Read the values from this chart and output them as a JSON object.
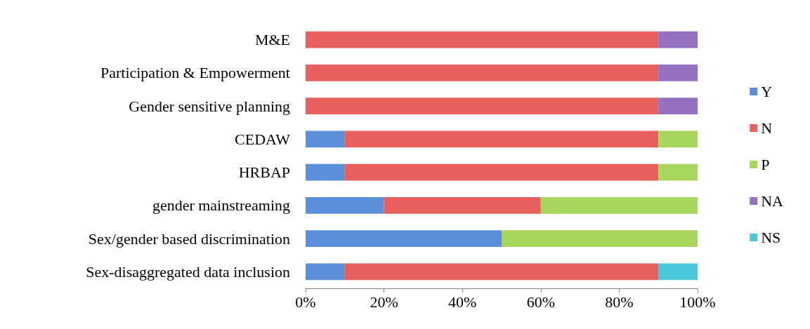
{
  "chart_data": {
    "type": "bar",
    "orientation": "horizontal",
    "stacked": true,
    "categories": [
      "M&E",
      "Participation & Empowerment",
      "Gender sensitive planning",
      "CEDAW",
      "HRBAP",
      "gender mainstreaming",
      "Sex/gender based discrimination",
      "Sex-disaggregated data inclusion"
    ],
    "series": [
      {
        "name": "Y",
        "color": "#5b8fd8",
        "values": [
          0,
          0,
          0,
          10,
          10,
          20,
          50,
          10
        ]
      },
      {
        "name": "N",
        "color": "#e8605e",
        "values": [
          90,
          90,
          90,
          80,
          80,
          40,
          0,
          80
        ]
      },
      {
        "name": "P",
        "color": "#a8d65c",
        "values": [
          0,
          0,
          0,
          10,
          10,
          40,
          50,
          0
        ]
      },
      {
        "name": "NA",
        "color": "#9370c0",
        "values": [
          10,
          10,
          10,
          0,
          0,
          0,
          0,
          0
        ]
      },
      {
        "name": "NS",
        "color": "#4cc6dc",
        "values": [
          0,
          0,
          0,
          0,
          0,
          0,
          0,
          10
        ]
      }
    ],
    "xlim": [
      0,
      100
    ],
    "xticks": [
      {
        "value": 0,
        "label": "0%"
      },
      {
        "value": 20,
        "label": "20%"
      },
      {
        "value": 40,
        "label": "40%"
      },
      {
        "value": 60,
        "label": "60%"
      },
      {
        "value": 80,
        "label": "80%"
      },
      {
        "value": 100,
        "label": "100%"
      }
    ],
    "legend": "right"
  }
}
